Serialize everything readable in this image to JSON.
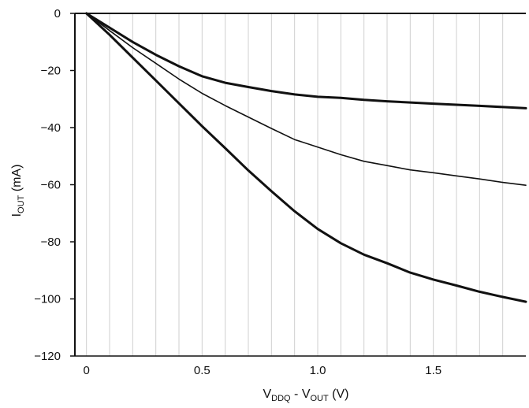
{
  "chart_data": {
    "type": "line",
    "title": "",
    "xlabel": {
      "main": "V",
      "sub1": "DDQ",
      "mid": " - V",
      "sub2": "OUT",
      "end": " (V)"
    },
    "ylabel": {
      "main": "I",
      "sub": "OUT",
      "end": " (mA)"
    },
    "xlim": [
      -0.05,
      1.9
    ],
    "ylim": [
      -120,
      0
    ],
    "x_ticks": [
      {
        "value": 0,
        "label": "0"
      },
      {
        "value": 0.5,
        "label": "0.5"
      },
      {
        "value": 1.0,
        "label": "1.0"
      },
      {
        "value": 1.5,
        "label": "1.5"
      }
    ],
    "y_ticks": [
      {
        "value": 0,
        "label": "0"
      },
      {
        "value": -20,
        "label": "−20"
      },
      {
        "value": -40,
        "label": "−40"
      },
      {
        "value": -60,
        "label": "−60"
      },
      {
        "value": -80,
        "label": "−80"
      },
      {
        "value": -100,
        "label": "−100"
      },
      {
        "value": -120,
        "label": "−120"
      }
    ],
    "x_grid_step": 0.1,
    "grid": true,
    "line_color": "#111111",
    "grid_color": "#cfcfcf",
    "series": [
      {
        "width": 3,
        "x": [
          0,
          0.1,
          0.2,
          0.3,
          0.4,
          0.5,
          0.6,
          0.7,
          0.8,
          0.9,
          1.0,
          1.1,
          1.2,
          1.3,
          1.4,
          1.5,
          1.6,
          1.7,
          1.8,
          1.9
        ],
        "y": [
          0,
          -5,
          -10,
          -14.5,
          -18.5,
          -22,
          -24.3,
          -25.8,
          -27.2,
          -28.4,
          -29.2,
          -29.6,
          -30.3,
          -30.8,
          -31.2,
          -31.6,
          -32,
          -32.4,
          -32.8,
          -33.2
        ]
      },
      {
        "width": 1.6,
        "x": [
          0,
          0.1,
          0.2,
          0.3,
          0.4,
          0.5,
          0.6,
          0.7,
          0.8,
          0.9,
          1.0,
          1.1,
          1.2,
          1.3,
          1.4,
          1.5,
          1.6,
          1.7,
          1.8,
          1.9
        ],
        "y": [
          0,
          -6,
          -12,
          -17.5,
          -23,
          -28,
          -32.3,
          -36.3,
          -40.3,
          -44.2,
          -46.8,
          -49.5,
          -51.8,
          -53.3,
          -54.8,
          -55.8,
          -56.9,
          -58,
          -59.2,
          -60.2
        ]
      },
      {
        "width": 3,
        "x": [
          0,
          0.1,
          0.2,
          0.3,
          0.4,
          0.5,
          0.6,
          0.7,
          0.8,
          0.9,
          1.0,
          1.1,
          1.2,
          1.3,
          1.4,
          1.5,
          1.6,
          1.7,
          1.8,
          1.9
        ],
        "y": [
          0,
          -7.5,
          -15.5,
          -23.5,
          -31.5,
          -39.5,
          -47.2,
          -55,
          -62.3,
          -69.3,
          -75.5,
          -80.5,
          -84.5,
          -87.5,
          -90.8,
          -93.2,
          -95.3,
          -97.5,
          -99.3,
          -101
        ]
      }
    ]
  }
}
